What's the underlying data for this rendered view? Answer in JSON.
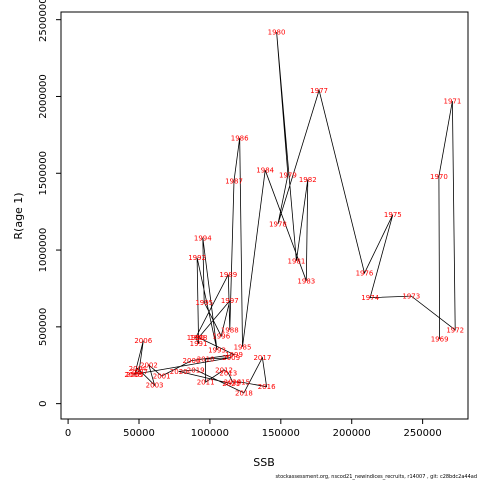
{
  "chart_data": {
    "type": "line",
    "xlabel": "SSB",
    "ylabel": "R(age 1)",
    "xlim": [
      -5000,
      282000
    ],
    "ylim": [
      -100000,
      2550000
    ],
    "x_ticks": [
      0,
      50000,
      100000,
      150000,
      200000,
      250000
    ],
    "y_ticks": [
      0,
      500000,
      1000000,
      1500000,
      2000000,
      2500000
    ],
    "line_color": "#000000",
    "label_color": "#ff0000",
    "points": [
      {
        "label": "1969",
        "x": 262000,
        "y": 420000
      },
      {
        "label": "1970",
        "x": 261500,
        "y": 1480000
      },
      {
        "label": "1971",
        "x": 271000,
        "y": 1970000
      },
      {
        "label": "1972",
        "x": 273000,
        "y": 480000
      },
      {
        "label": "1973",
        "x": 242000,
        "y": 700000
      },
      {
        "label": "1974",
        "x": 213000,
        "y": 690000
      },
      {
        "label": "1975",
        "x": 229000,
        "y": 1230000
      },
      {
        "label": "1976",
        "x": 209000,
        "y": 850000
      },
      {
        "label": "1977",
        "x": 177000,
        "y": 2040000
      },
      {
        "label": "1978",
        "x": 148000,
        "y": 1170000
      },
      {
        "label": "1979",
        "x": 155000,
        "y": 1490000
      },
      {
        "label": "1980",
        "x": 147000,
        "y": 2420000
      },
      {
        "label": "1981",
        "x": 161000,
        "y": 930000
      },
      {
        "label": "1982",
        "x": 169000,
        "y": 1460000
      },
      {
        "label": "1983",
        "x": 168000,
        "y": 800000
      },
      {
        "label": "1984",
        "x": 139000,
        "y": 1520000
      },
      {
        "label": "1985",
        "x": 123000,
        "y": 370000
      },
      {
        "label": "1986",
        "x": 121000,
        "y": 1730000
      },
      {
        "label": "1987",
        "x": 117000,
        "y": 1450000
      },
      {
        "label": "1988",
        "x": 114000,
        "y": 480000
      },
      {
        "label": "1989",
        "x": 113000,
        "y": 840000
      },
      {
        "label": "1990",
        "x": 90000,
        "y": 430000
      },
      {
        "label": "1991",
        "x": 92000,
        "y": 390000
      },
      {
        "label": "1992",
        "x": 91000,
        "y": 950000
      },
      {
        "label": "1993",
        "x": 105000,
        "y": 350000
      },
      {
        "label": "1994",
        "x": 95000,
        "y": 1080000
      },
      {
        "label": "1995",
        "x": 96000,
        "y": 660000
      },
      {
        "label": "1996",
        "x": 108000,
        "y": 440000
      },
      {
        "label": "1997",
        "x": 114000,
        "y": 670000
      },
      {
        "label": "1998",
        "x": 92000,
        "y": 430000
      },
      {
        "label": "1999",
        "x": 117000,
        "y": 320000
      },
      {
        "label": "2000",
        "x": 87000,
        "y": 280000
      },
      {
        "label": "2001",
        "x": 66000,
        "y": 180000
      },
      {
        "label": "2002",
        "x": 57000,
        "y": 250000
      },
      {
        "label": "2003",
        "x": 61000,
        "y": 120000
      },
      {
        "label": "2004",
        "x": 49000,
        "y": 230000
      },
      {
        "label": "2005",
        "x": 47000,
        "y": 190000
      },
      {
        "label": "2006",
        "x": 53000,
        "y": 410000
      },
      {
        "label": "2007",
        "x": 50000,
        "y": 210000
      },
      {
        "label": "2008",
        "x": 46000,
        "y": 190000
      },
      {
        "label": "2009",
        "x": 115000,
        "y": 300000
      },
      {
        "label": "2010",
        "x": 97000,
        "y": 290000
      },
      {
        "label": "2011",
        "x": 97000,
        "y": 140000
      },
      {
        "label": "2012",
        "x": 110000,
        "y": 220000
      },
      {
        "label": "2013",
        "x": 113000,
        "y": 200000
      },
      {
        "label": "2014",
        "x": 116000,
        "y": 140000
      },
      {
        "label": "2015",
        "x": 122000,
        "y": 140000
      },
      {
        "label": "2016",
        "x": 140000,
        "y": 110000
      },
      {
        "label": "2017",
        "x": 137000,
        "y": 300000
      },
      {
        "label": "2018",
        "x": 124000,
        "y": 70000
      },
      {
        "label": "2019",
        "x": 90000,
        "y": 220000
      },
      {
        "label": "2020",
        "x": 78000,
        "y": 210000
      },
      {
        "label": "2021",
        "x": 115000,
        "y": 130000
      }
    ]
  },
  "footer": "stockassessment.org, nscod21_newindices_recruits, r14007 , git: c28bdc2a44ad"
}
